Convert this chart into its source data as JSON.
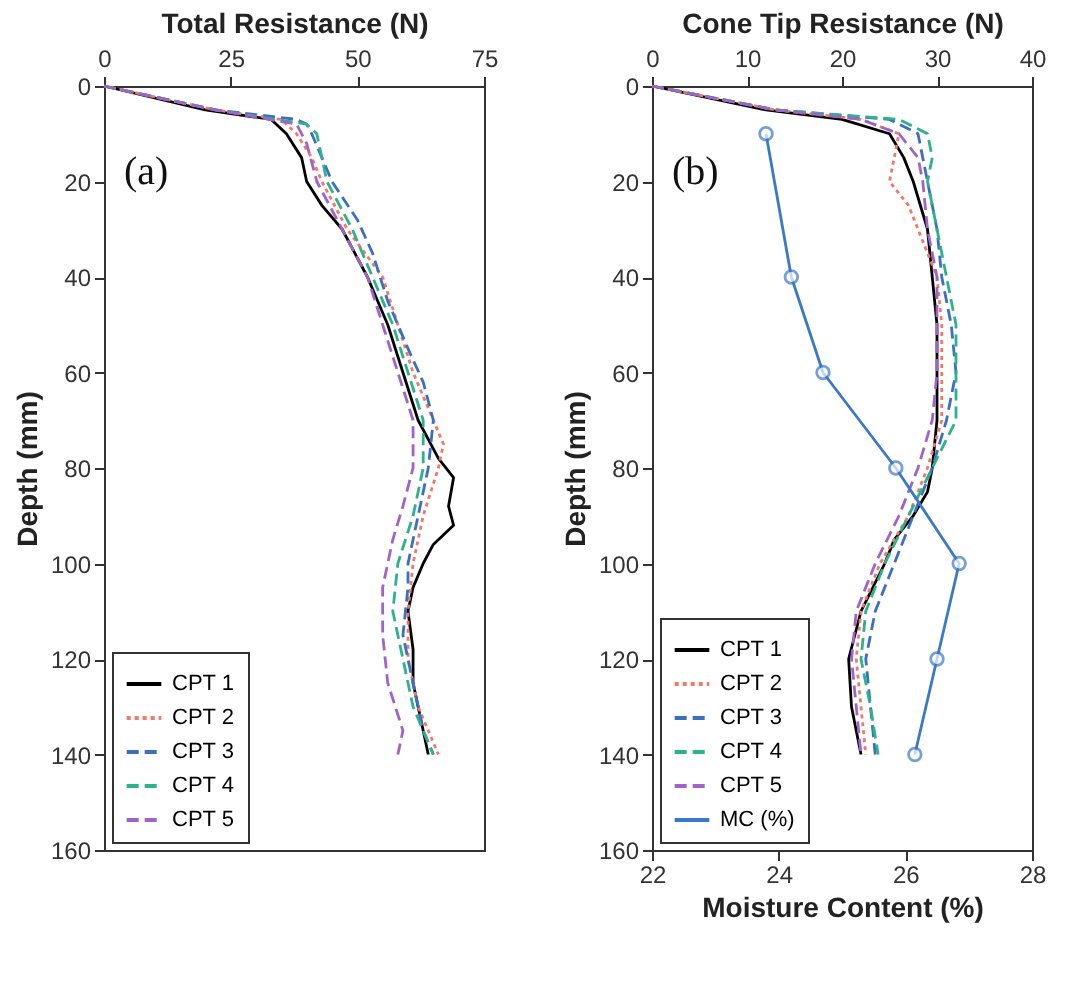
{
  "chart_data": [
    {
      "type": "line",
      "xlabel": "Total Resistance (N)",
      "ylabel": "Depth (mm)",
      "xlim": [
        0,
        75
      ],
      "xticks": [
        0,
        25,
        50,
        75
      ],
      "ylim": [
        160,
        0
      ],
      "yticks": [
        0,
        20,
        40,
        60,
        80,
        100,
        120,
        140,
        160
      ],
      "grid": false,
      "legend": "bottom left",
      "annotations": [
        "(a)"
      ],
      "series": [
        {
          "name": "CPT 1",
          "color": "#000000",
          "line_style": "solid",
          "x": [
            0,
            20,
            33,
            36,
            39,
            40,
            43,
            47,
            52,
            56,
            59,
            62,
            66,
            69,
            68,
            69,
            65,
            63,
            61,
            60,
            61,
            61,
            62,
            64
          ],
          "values": [
            0,
            5,
            7,
            10,
            15,
            20,
            25,
            30,
            40,
            50,
            60,
            70,
            78,
            82,
            88,
            92,
            96,
            100,
            105,
            110,
            118,
            125,
            130,
            140
          ]
        },
        {
          "name": "CPT 2",
          "color": "#f4776a",
          "line_style": "dotted",
          "x": [
            0,
            22,
            35,
            38,
            41,
            43,
            48,
            55,
            58,
            61,
            65,
            67,
            66,
            63,
            61,
            60,
            60,
            62,
            66
          ],
          "values": [
            0,
            5,
            7,
            10,
            15,
            20,
            30,
            40,
            50,
            60,
            70,
            75,
            80,
            90,
            100,
            110,
            120,
            130,
            140
          ]
        },
        {
          "name": "CPT 3",
          "color": "#3a6fc4",
          "line_style": "dashed",
          "x": [
            0,
            22,
            38,
            40,
            41,
            43,
            45,
            50,
            53,
            56,
            60,
            63,
            65,
            64,
            62,
            60,
            60,
            59,
            61,
            63,
            65
          ],
          "values": [
            0,
            5,
            7,
            8,
            10,
            15,
            20,
            28,
            35,
            45,
            55,
            62,
            70,
            80,
            90,
            100,
            105,
            115,
            125,
            135,
            140
          ]
        },
        {
          "name": "CPT 4",
          "color": "#2db38a",
          "line_style": "dashed",
          "x": [
            0,
            22,
            40,
            42,
            43,
            44,
            49,
            53,
            57,
            60,
            63,
            63,
            61,
            58,
            57,
            59,
            61,
            65
          ],
          "values": [
            0,
            5,
            8,
            10,
            15,
            20,
            30,
            40,
            50,
            60,
            70,
            80,
            90,
            100,
            110,
            120,
            130,
            140
          ]
        },
        {
          "name": "CPT 5",
          "color": "#a064c8",
          "line_style": "dashed",
          "x": [
            0,
            22,
            38,
            40,
            41,
            42,
            47,
            52,
            55,
            58,
            61,
            61,
            59,
            57,
            55,
            55,
            56,
            59,
            58
          ],
          "values": [
            0,
            5,
            8,
            12,
            16,
            20,
            30,
            40,
            50,
            60,
            70,
            80,
            88,
            95,
            105,
            115,
            125,
            135,
            140
          ]
        }
      ]
    },
    {
      "type": "line",
      "x2label": "Cone Tip Resistance (N)",
      "xlabel": "Moisture Content (%)",
      "ylabel": "Depth (mm)",
      "x2lim": [
        0,
        40
      ],
      "x2ticks": [
        0,
        10,
        20,
        30,
        40
      ],
      "xlim": [
        22,
        28
      ],
      "xticks": [
        22,
        24,
        26,
        28
      ],
      "ylim": [
        160,
        0
      ],
      "yticks": [
        0,
        20,
        40,
        60,
        80,
        100,
        120,
        140,
        160
      ],
      "grid": false,
      "legend": "bottom left",
      "annotations": [
        "(b)"
      ],
      "series": [
        {
          "name": "CPT 1",
          "color": "#000000",
          "line_style": "solid",
          "axis": "x2",
          "x": [
            0,
            12,
            20,
            25,
            26.5,
            27.5,
            29,
            29.5,
            30,
            30,
            30,
            29.5,
            29,
            27.5,
            25.5,
            24.5,
            22,
            20.7,
            21,
            22
          ],
          "values": [
            0,
            5,
            7,
            10,
            15,
            20,
            30,
            40,
            50,
            60,
            70,
            80,
            85,
            90,
            95,
            100,
            110,
            120,
            130,
            140
          ]
        },
        {
          "name": "CPT 2",
          "color": "#f4776a",
          "line_style": "dotted",
          "axis": "x2",
          "x": [
            0,
            13,
            22,
            26,
            25.5,
            25,
            27,
            28,
            30,
            30.5,
            30.5,
            30.5,
            29,
            27,
            24,
            22,
            21.5,
            22,
            22.5
          ],
          "values": [
            0,
            5,
            7,
            10,
            15,
            20,
            25,
            30,
            40,
            50,
            60,
            70,
            80,
            90,
            100,
            110,
            120,
            130,
            140
          ]
        },
        {
          "name": "CPT 3",
          "color": "#3a6fc4",
          "line_style": "dashed",
          "axis": "x2",
          "x": [
            0,
            13,
            25,
            28,
            29,
            30,
            30.5,
            31.5,
            32,
            31,
            29.5,
            27.5,
            25.5,
            23.5,
            22.5,
            23,
            23.5
          ],
          "values": [
            0,
            5,
            7,
            10,
            20,
            30,
            40,
            50,
            60,
            70,
            80,
            90,
            100,
            110,
            120,
            130,
            140
          ]
        },
        {
          "name": "CPT 4",
          "color": "#2db38a",
          "line_style": "dashed",
          "axis": "x2",
          "x": [
            0,
            13,
            26,
            29,
            29.5,
            29,
            30,
            31,
            32,
            32,
            32,
            29.5,
            27,
            24.5,
            22.5,
            22,
            23,
            23.8
          ],
          "values": [
            0,
            5,
            7,
            10,
            15,
            20,
            30,
            40,
            50,
            60,
            70,
            80,
            90,
            100,
            110,
            120,
            130,
            140
          ]
        },
        {
          "name": "CPT 5",
          "color": "#a064c8",
          "line_style": "dashed",
          "axis": "x2",
          "x": [
            0,
            13,
            22,
            26,
            28,
            28.5,
            29,
            30,
            30,
            30,
            29.5,
            28,
            26,
            23.5,
            21.5,
            21,
            21.5,
            22
          ],
          "values": [
            0,
            5,
            7,
            10,
            15,
            20,
            30,
            40,
            50,
            60,
            70,
            80,
            90,
            100,
            110,
            120,
            130,
            140
          ]
        },
        {
          "name": "MC (%)",
          "color": "#3a78c8",
          "line_style": "solid",
          "marker": "circle",
          "x": [
            23.8,
            24.2,
            24.7,
            25.85,
            26.85,
            26.5,
            26.15
          ],
          "values": [
            10,
            40,
            60,
            80,
            100,
            120,
            140
          ]
        }
      ]
    }
  ]
}
